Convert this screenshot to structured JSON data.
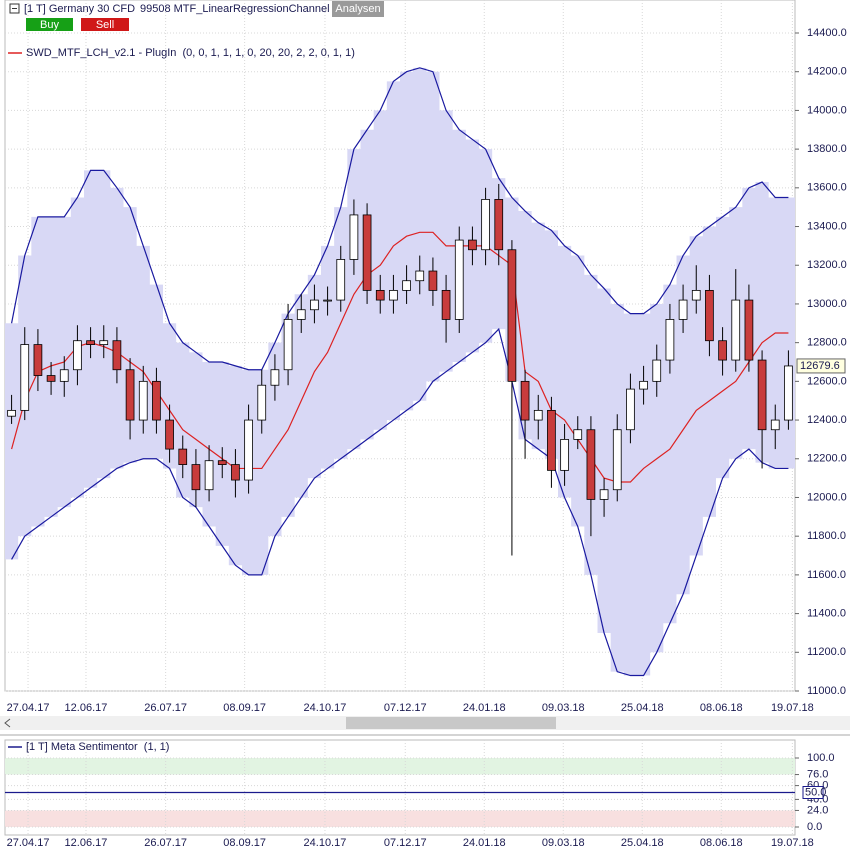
{
  "toolbar": {
    "instrument": "[1 T] Germany 30 CFD",
    "study": "99508 MTF_LinearRegressionChannel",
    "analysen": "Analysen",
    "buy": "Buy",
    "sell": "Sell"
  },
  "chart_data": [
    {
      "type": "candlestick",
      "legend": "SWD_MTF_LCH_v2.1 - PlugIn  (0, 0, 1, 1, 1, 0, 20, 20, 2, 2, 0, 1, 1)",
      "x": [
        0,
        1,
        2,
        3,
        4,
        5,
        6,
        7,
        8,
        9,
        10,
        11,
        12,
        13,
        14,
        15,
        16,
        17,
        18,
        19,
        20,
        21,
        22,
        23,
        24,
        25,
        26,
        27,
        28,
        29,
        30,
        31,
        32,
        33,
        34,
        35,
        36,
        37,
        38,
        39,
        40,
        41,
        42,
        43,
        44,
        45,
        46,
        47,
        48,
        49,
        50,
        51,
        52,
        53,
        54,
        55,
        56,
        57,
        58,
        59
      ],
      "open": [
        12420,
        12450,
        12790,
        12630,
        12600,
        12660,
        12810,
        12790,
        12810,
        12660,
        12400,
        12600,
        12400,
        12250,
        12170,
        12040,
        12190,
        12170,
        12090,
        12400,
        12580,
        12660,
        12920,
        12970,
        13020,
        13020,
        13230,
        13460,
        13070,
        13020,
        13070,
        13120,
        13170,
        13070,
        12920,
        13330,
        13280,
        13540,
        13280,
        12600,
        12400,
        12450,
        12140,
        12300,
        12350,
        11990,
        12040,
        12350,
        12560,
        12600,
        12710,
        12920,
        13020,
        13070,
        12810,
        12710,
        13020,
        12710,
        12350,
        12400
      ],
      "high": [
        12530,
        12880,
        12870,
        12700,
        12730,
        12890,
        12880,
        12890,
        12880,
        12720,
        12680,
        12670,
        12480,
        12320,
        12250,
        12270,
        12260,
        12250,
        12480,
        12660,
        12740,
        13000,
        13050,
        13100,
        13090,
        13300,
        13540,
        13520,
        13150,
        13150,
        13200,
        13250,
        13240,
        13150,
        13400,
        13400,
        13600,
        13620,
        13330,
        12660,
        12530,
        12520,
        12380,
        12420,
        12420,
        12100,
        12430,
        12640,
        12680,
        12790,
        13000,
        13100,
        13200,
        13150,
        12880,
        13180,
        13100,
        12760,
        12480,
        12760
      ],
      "low": [
        12380,
        12400,
        12550,
        12530,
        12520,
        12580,
        12720,
        12720,
        12590,
        12300,
        12330,
        12330,
        12180,
        12100,
        11950,
        11980,
        12100,
        12000,
        12020,
        12330,
        12500,
        12580,
        12850,
        12900,
        12940,
        12960,
        13150,
        13000,
        12950,
        12950,
        13000,
        13050,
        12990,
        12800,
        12850,
        13200,
        13200,
        13200,
        11700,
        12200,
        12300,
        12050,
        12060,
        12250,
        11800,
        11900,
        11980,
        12280,
        12480,
        12520,
        12640,
        12850,
        12950,
        12730,
        12630,
        12650,
        12650,
        12150,
        12250,
        12350
      ],
      "close": [
        12450,
        12790,
        12630,
        12600,
        12660,
        12810,
        12790,
        12810,
        12660,
        12400,
        12600,
        12400,
        12250,
        12170,
        12040,
        12190,
        12170,
        12090,
        12400,
        12580,
        12660,
        12920,
        12970,
        13020,
        13020,
        13230,
        13460,
        13070,
        13020,
        13070,
        13120,
        13170,
        13070,
        12920,
        13330,
        13280,
        13540,
        13280,
        12600,
        12400,
        12450,
        12140,
        12300,
        12350,
        11990,
        12040,
        12350,
        12560,
        12600,
        12710,
        12920,
        13020,
        13070,
        12810,
        12710,
        13020,
        12710,
        12350,
        12400,
        12679.6
      ],
      "up_color": "#ffffff",
      "down_color": "#c83c3c",
      "channel": {
        "upper": [
          12900,
          13250,
          13450,
          13450,
          13450,
          13550,
          13690,
          13690,
          13600,
          13500,
          13300,
          13100,
          12900,
          12800,
          12750,
          12700,
          12700,
          12680,
          12660,
          12660,
          12800,
          12950,
          13050,
          13150,
          13300,
          13500,
          13800,
          13900,
          14000,
          14150,
          14200,
          14220,
          14200,
          14000,
          13900,
          13850,
          13800,
          13650,
          13550,
          13480,
          13420,
          13380,
          13300,
          13250,
          13150,
          13080,
          13000,
          12950,
          12950,
          13000,
          13100,
          13250,
          13350,
          13400,
          13450,
          13500,
          13600,
          13630,
          13550,
          13550
        ],
        "middle": [
          12250,
          12500,
          12650,
          12680,
          12700,
          12780,
          12800,
          12780,
          12750,
          12700,
          12650,
          12550,
          12450,
          12350,
          12300,
          12250,
          12200,
          12150,
          12150,
          12150,
          12250,
          12350,
          12500,
          12650,
          12750,
          12900,
          13050,
          13150,
          13200,
          13300,
          13350,
          13370,
          13370,
          13300,
          13300,
          13300,
          13300,
          13250,
          13200,
          12650,
          12600,
          12450,
          12400,
          12300,
          12200,
          12100,
          12080,
          12080,
          12150,
          12200,
          12250,
          12350,
          12450,
          12500,
          12550,
          12600,
          12700,
          12800,
          12850,
          12850
        ],
        "lower": [
          11680,
          11800,
          11850,
          11900,
          11950,
          12000,
          12050,
          12100,
          12150,
          12180,
          12200,
          12200,
          12150,
          12000,
          11950,
          11850,
          11750,
          11650,
          11600,
          11600,
          11800,
          11900,
          12000,
          12100,
          12150,
          12200,
          12250,
          12300,
          12350,
          12400,
          12450,
          12500,
          12600,
          12650,
          12700,
          12750,
          12800,
          12870,
          12600,
          12300,
          12250,
          12200,
          12000,
          11850,
          11600,
          11300,
          11100,
          11080,
          11080,
          11200,
          11350,
          11500,
          11700,
          11900,
          12100,
          12200,
          12250,
          12180,
          12150,
          12150
        ],
        "band_color": "#1a1aa0",
        "fill": "#d8d8f5",
        "middle_color": "#dd2222"
      },
      "xlim": [
        -0.5,
        59.5
      ],
      "xticks": [
        {
          "value": 1.25,
          "label": "27.04.17"
        },
        {
          "value": 5.65,
          "label": "12.06.17"
        },
        {
          "value": 11.7,
          "label": "26.07.17"
        },
        {
          "value": 17.7,
          "label": "08.09.17"
        },
        {
          "value": 23.8,
          "label": "24.10.17"
        },
        {
          "value": 29.9,
          "label": "07.12.17"
        },
        {
          "value": 35.9,
          "label": "24.01.18"
        },
        {
          "value": 41.9,
          "label": "09.03.18"
        },
        {
          "value": 47.9,
          "label": "25.04.18"
        },
        {
          "value": 53.9,
          "label": "08.06.18"
        },
        {
          "value": 59.3,
          "label": "19.07.18"
        }
      ],
      "ylim": [
        11000,
        14400
      ],
      "yticks": [
        {
          "value": 11000,
          "label": "11000.0"
        },
        {
          "value": 11200,
          "label": "11200.0"
        },
        {
          "value": 11400,
          "label": "11400.0"
        },
        {
          "value": 11600,
          "label": "11600.0"
        },
        {
          "value": 11800,
          "label": "11800.0"
        },
        {
          "value": 12000,
          "label": "12000.0"
        },
        {
          "value": 12200,
          "label": "12200.0"
        },
        {
          "value": 12400,
          "label": "12400.0"
        },
        {
          "value": 12600,
          "label": "12600.0"
        },
        {
          "value": 12800,
          "label": "12800.0"
        },
        {
          "value": 13000,
          "label": "13000.0"
        },
        {
          "value": 13200,
          "label": "13200.0"
        },
        {
          "value": 13400,
          "label": "13400.0"
        },
        {
          "value": 13600,
          "label": "13600.0"
        },
        {
          "value": 13800,
          "label": "13800.0"
        },
        {
          "value": 14000,
          "label": "14000.0"
        },
        {
          "value": 14200,
          "label": "14200.0"
        },
        {
          "value": 14400,
          "label": "14400.0"
        }
      ],
      "grid": true
    },
    {
      "type": "line",
      "legend": "[1 T] Meta Sentimentor  (1, 1)",
      "x": [
        -0.5,
        59.5
      ],
      "series": [
        {
          "color": "#1a1a8c",
          "values": [
            50,
            50
          ],
          "value_labels": [
            null,
            "50.0"
          ]
        }
      ],
      "zones": [
        {
          "from": 76,
          "to": 100,
          "color": "#e2f4e2"
        },
        {
          "from": 0,
          "to": 24,
          "color": "#f8e0e0"
        }
      ],
      "xlim": [
        -0.5,
        59.5
      ],
      "xticks": [
        {
          "value": 1.25,
          "label": "27.04.17"
        },
        {
          "value": 5.65,
          "label": "12.06.17"
        },
        {
          "value": 11.7,
          "label": "26.07.17"
        },
        {
          "value": 17.7,
          "label": "08.09.17"
        },
        {
          "value": 23.8,
          "label": "24.10.17"
        },
        {
          "value": 29.9,
          "label": "07.12.17"
        },
        {
          "value": 35.9,
          "label": "24.01.18"
        },
        {
          "value": 41.9,
          "label": "09.03.18"
        },
        {
          "value": 47.9,
          "label": "25.04.18"
        },
        {
          "value": 53.9,
          "label": "08.06.18"
        },
        {
          "value": 59.3,
          "label": "19.07.18"
        }
      ],
      "ylim": [
        0,
        100
      ],
      "yticks": [
        {
          "value": 100,
          "label": "100.0"
        },
        {
          "value": 76,
          "label": "76.0"
        },
        {
          "value": 60,
          "label": "60.0"
        },
        {
          "value": 40,
          "label": "40.0"
        },
        {
          "value": 24,
          "label": "24.0"
        },
        {
          "value": 0,
          "label": "0.0"
        }
      ],
      "grid": true
    }
  ]
}
